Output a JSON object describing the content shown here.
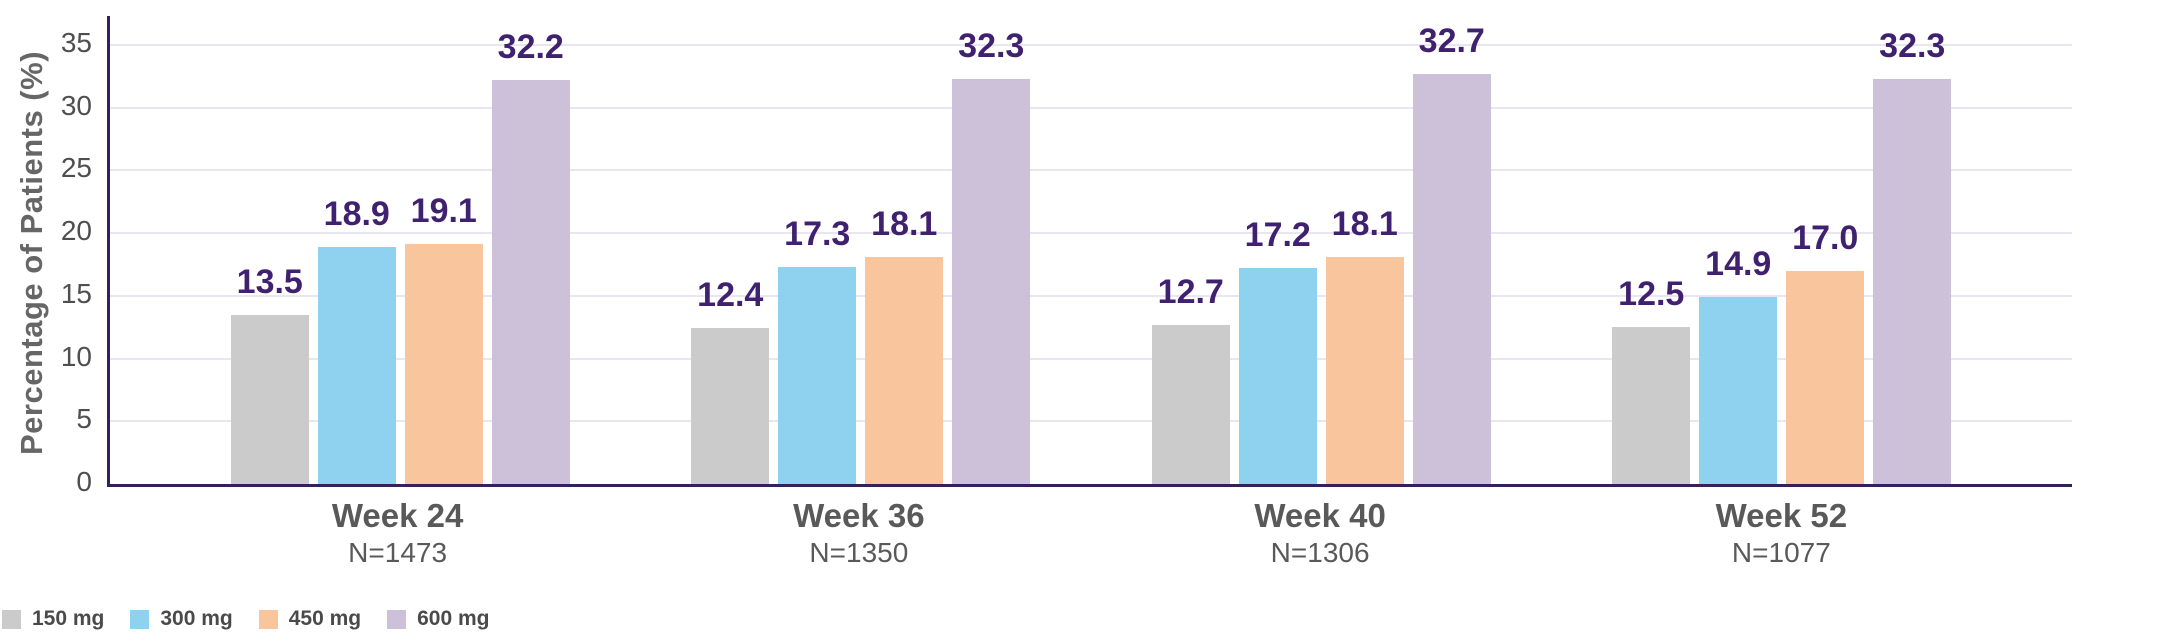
{
  "chart_data": {
    "type": "bar",
    "title": "",
    "ylabel": "Percentage of Patients (%)",
    "xlabel": "",
    "ylim": [
      0,
      35
    ],
    "yticks": [
      0,
      5,
      10,
      15,
      20,
      25,
      30,
      35
    ],
    "grid": true,
    "legend_position": "bottom-left",
    "categories": [
      "Week 24",
      "Week 36",
      "Week 40",
      "Week 52"
    ],
    "category_sublabels": [
      "N=1473",
      "N=1350",
      "N=1306",
      "N=1077"
    ],
    "series": [
      {
        "name": "150 mg",
        "color": "#cbcbcb",
        "values": [
          13.5,
          12.4,
          12.7,
          12.5
        ]
      },
      {
        "name": "300 mg",
        "color": "#8ed2ef",
        "values": [
          18.9,
          17.3,
          17.2,
          14.9
        ]
      },
      {
        "name": "450 mg",
        "color": "#f8c59c",
        "values": [
          19.1,
          18.1,
          18.1,
          17.0
        ]
      },
      {
        "name": "600 mg",
        "color": "#ccc1d8",
        "values": [
          32.2,
          32.3,
          32.7,
          32.3
        ]
      }
    ]
  },
  "colors": {
    "axis_line": "#34205f",
    "gridline": "#e9e6f1",
    "tick_label": "#4f4f4f",
    "category_label": "#595959",
    "data_label": "#40216f",
    "axis_title": "#666666",
    "legend_text": "#4a4a4a",
    "background": "#ffffff"
  }
}
